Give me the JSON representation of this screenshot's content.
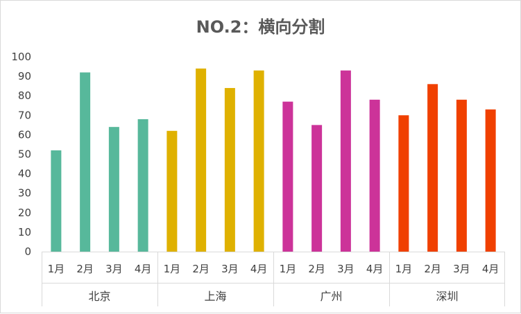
{
  "chart_data": {
    "type": "bar",
    "title": "NO.2：横向分割",
    "xlabel": "",
    "ylabel": "",
    "ylim": [
      0,
      100
    ],
    "yticks": [
      0,
      10,
      20,
      30,
      40,
      50,
      60,
      70,
      80,
      90,
      100
    ],
    "grid": false,
    "legend": "none",
    "groups": [
      {
        "name": "北京",
        "color": "#57b89b",
        "categories": [
          "1月",
          "2月",
          "3月",
          "4月"
        ],
        "values": [
          52,
          92,
          64,
          68
        ]
      },
      {
        "name": "上海",
        "color": "#dfb100",
        "categories": [
          "1月",
          "2月",
          "3月",
          "4月"
        ],
        "values": [
          62,
          94,
          84,
          93
        ]
      },
      {
        "name": "广州",
        "color": "#cc3399",
        "categories": [
          "1月",
          "2月",
          "3月",
          "4月"
        ],
        "values": [
          77,
          65,
          93,
          78
        ]
      },
      {
        "name": "深圳",
        "color": "#f04000",
        "categories": [
          "1月",
          "2月",
          "3月",
          "4月"
        ],
        "values": [
          70,
          86,
          78,
          73
        ]
      }
    ]
  }
}
